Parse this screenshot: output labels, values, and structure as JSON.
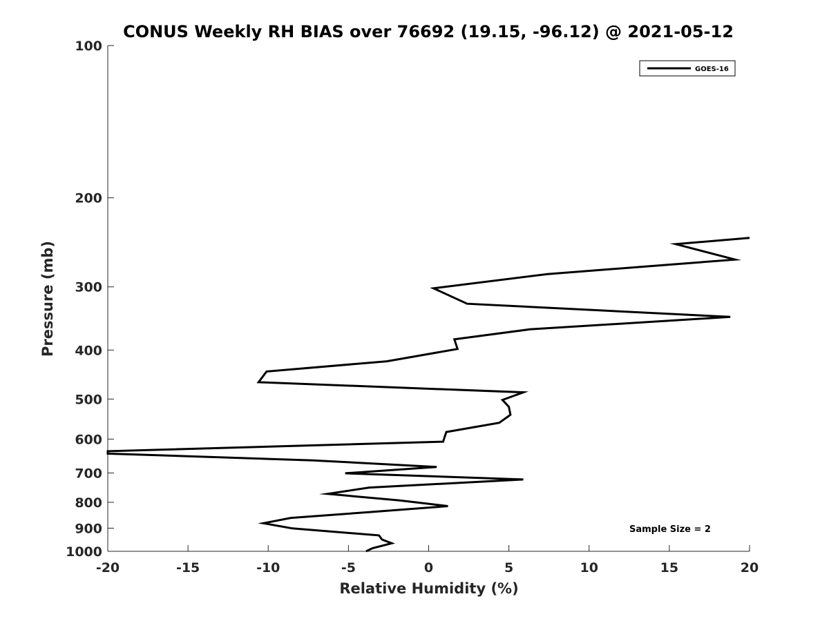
{
  "chart_data": {
    "type": "line",
    "title": "CONUS Weekly RH BIAS over 76692 (19.15, -96.12) @ 2021-05-12",
    "xlabel": "Relative Humidity (%)",
    "ylabel": "Pressure (mb)",
    "xlim": [
      -20,
      20
    ],
    "ylim": [
      100,
      1000
    ],
    "yscale": "log",
    "yreverse": true,
    "grid": false,
    "legend_position": "top-right",
    "x_ticks": [
      "-20",
      "-15",
      "-10",
      "-5",
      "0",
      "5",
      "10",
      "15",
      "20"
    ],
    "y_ticks": [
      "100",
      "200",
      "300",
      "400",
      "500",
      "600",
      "700",
      "800",
      "900",
      "1000"
    ],
    "annotation": "Sample Size = 2",
    "series": [
      {
        "name": "GOES-16",
        "color": "#000000",
        "points": [
          [
            20.0,
            240
          ],
          [
            15.4,
            247
          ],
          [
            19.1,
            265
          ],
          [
            7.4,
            283
          ],
          [
            0.3,
            302
          ],
          [
            2.4,
            324
          ],
          [
            18.8,
            344
          ],
          [
            6.3,
            364
          ],
          [
            1.6,
            381
          ],
          [
            1.8,
            398
          ],
          [
            -2.6,
            421
          ],
          [
            -10.1,
            441
          ],
          [
            -10.6,
            463
          ],
          [
            5.9,
            485
          ],
          [
            4.6,
            502
          ],
          [
            5.0,
            518
          ],
          [
            5.1,
            537
          ],
          [
            4.4,
            557
          ],
          [
            1.1,
            581
          ],
          [
            0.9,
            607
          ],
          [
            -20.0,
            634
          ],
          [
            -20.0,
            641
          ],
          [
            -7.2,
            661
          ],
          [
            0.5,
            681
          ],
          [
            -5.2,
            701
          ],
          [
            5.9,
            721
          ],
          [
            -3.7,
            748
          ],
          [
            -6.3,
            770
          ],
          [
            -1.8,
            793
          ],
          [
            1.2,
            814
          ],
          [
            -3.8,
            837
          ],
          [
            -8.6,
            859
          ],
          [
            -10.3,
            880
          ],
          [
            -8.5,
            901
          ],
          [
            -3.1,
            930
          ],
          [
            -2.9,
            948
          ],
          [
            -2.3,
            964
          ],
          [
            -3.5,
            986
          ],
          [
            -3.9,
            1000
          ]
        ]
      }
    ]
  }
}
